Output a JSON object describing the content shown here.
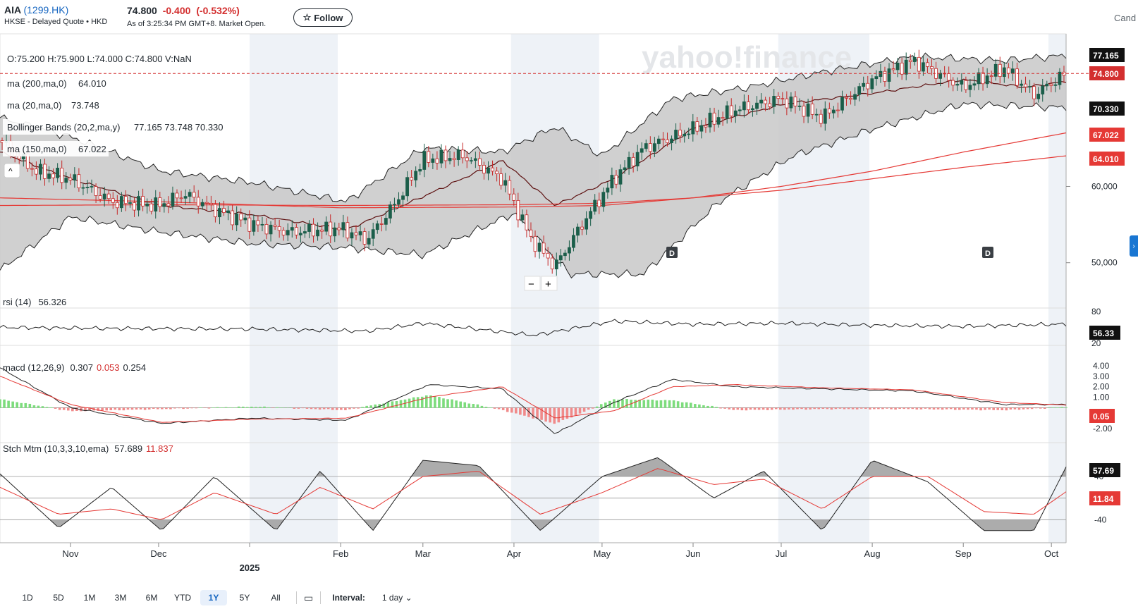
{
  "header": {
    "name": "AIA",
    "ticker": "(1299.HK)",
    "exchange": "HKSE - Delayed Quote • HKD",
    "price": "74.800",
    "change": "-0.400",
    "change_pct": "(-0.532%)",
    "as_of": "As of 3:25:34 PM GMT+8. Market Open.",
    "follow_label": "Follow",
    "follow_icon": "star-icon",
    "chart_type_label": "Cand"
  },
  "watermark": "yahoo!finance",
  "overlays": {
    "ohlc": "O:75.200  H:75.900  L:74.000  C:74.800  V:NaN",
    "ma200_label": "ma (200,ma,0)",
    "ma200_value": "64.010",
    "ma20_label": "ma (20,ma,0)",
    "ma20_value": "73.748",
    "bb_label": "Bollinger Bands (20,2,ma,y)",
    "bb_values": "77.165 73.748 70.330",
    "ma150_label": "ma (150,ma,0)",
    "ma150_value": "67.022",
    "rsi_label": "rsi (14)",
    "rsi_value": "56.326",
    "macd_label": "macd (12,26,9)",
    "macd_v1": "0.307",
    "macd_v2": "0.053",
    "macd_v3": "0.254",
    "stch_label": "Stch Mtm (10,3,3,10,ema)",
    "stch_v1": "57.689",
    "stch_v2": "11.837"
  },
  "price_badges": {
    "bb_upper": "77.165",
    "last": "74.800",
    "bb_lower": "70.330",
    "ma150": "67.022",
    "ma200": "64.010"
  },
  "sub_badges": {
    "rsi": "56.33",
    "macd": "0.05",
    "stch1": "57.69",
    "stch2": "11.84"
  },
  "zoom": {
    "minus": "−",
    "plus": "+"
  },
  "dividend_marker": "D",
  "colors": {
    "up": "#1b5e4a",
    "down": "#c62828",
    "ma": "#e53935",
    "bb_fill": "#c8c8c8",
    "shade": "#eef2f7",
    "hist_up": "#7ddc7d",
    "hist_down": "#f08a8a"
  },
  "range_buttons": [
    "1D",
    "5D",
    "1M",
    "3M",
    "6M",
    "YTD",
    "1Y",
    "5Y",
    "All"
  ],
  "range_selected": "1Y",
  "calendar_icon": "calendar-icon",
  "interval_label": "Interval:",
  "interval_value": "1 day",
  "chart_data": {
    "type": "line",
    "title": "",
    "x_tick_labels": [
      "Nov",
      "Dec",
      "2025",
      "Feb",
      "Mar",
      "Apr",
      "May",
      "Jun",
      "Jul",
      "Aug",
      "Sep",
      "Oct"
    ],
    "x_range": [
      "2024-10-08",
      "2025-10-06"
    ],
    "price_axis": {
      "ticks": [
        50,
        60
      ],
      "tick_labels": [
        "50,000",
        "60,000"
      ],
      "ylim": [
        46,
        80
      ]
    },
    "series": [
      {
        "name": "ma (20,ma,0)",
        "x": [
          "2024-10-08",
          "2024-11-01",
          "2024-12-02",
          "2025-01-02",
          "2025-02-03",
          "2025-03-03",
          "2025-03-28",
          "2025-04-15",
          "2025-05-05",
          "2025-06-02",
          "2025-07-02",
          "2025-08-01",
          "2025-09-01",
          "2025-09-22",
          "2025-10-06"
        ],
        "values": [
          64.5,
          61.0,
          57.5,
          56.3,
          54.3,
          59.0,
          63.4,
          57.5,
          61.0,
          67.8,
          70.8,
          72.2,
          74.0,
          73.0,
          73.75
        ]
      },
      {
        "name": "Bollinger Bands upper",
        "x": [
          "2024-10-08",
          "2024-11-01",
          "2024-12-02",
          "2025-01-02",
          "2025-02-03",
          "2025-03-01",
          "2025-03-28",
          "2025-04-15",
          "2025-05-01",
          "2025-05-25",
          "2025-06-20",
          "2025-07-15",
          "2025-08-15",
          "2025-09-15",
          "2025-10-06"
        ],
        "values": [
          69.0,
          66.5,
          62.0,
          60.5,
          58.0,
          65.0,
          64.5,
          67.8,
          64.0,
          71.5,
          73.0,
          75.0,
          77.0,
          76.5,
          77.17
        ]
      },
      {
        "name": "Bollinger Bands lower",
        "x": [
          "2024-10-08",
          "2024-11-01",
          "2024-12-02",
          "2025-01-02",
          "2025-02-03",
          "2025-03-01",
          "2025-04-01",
          "2025-04-20",
          "2025-05-15",
          "2025-06-10",
          "2025-07-05",
          "2025-08-01",
          "2025-09-01",
          "2025-10-06"
        ],
        "values": [
          49.0,
          56.0,
          54.0,
          52.5,
          52.0,
          51.0,
          56.5,
          48.5,
          48.5,
          58.0,
          64.0,
          67.5,
          70.8,
          70.33
        ]
      },
      {
        "name": "ma (150,ma,0)",
        "x": [
          "2024-10-08",
          "2024-12-01",
          "2025-02-01",
          "2025-04-01",
          "2025-05-01",
          "2025-06-01",
          "2025-07-01",
          "2025-08-01",
          "2025-09-01",
          "2025-10-06"
        ],
        "values": [
          58.5,
          58.0,
          57.2,
          57.3,
          57.5,
          58.5,
          60.0,
          62.0,
          64.5,
          67.02
        ]
      },
      {
        "name": "ma (200,ma,0)",
        "x": [
          "2024-10-08",
          "2024-12-01",
          "2025-02-01",
          "2025-04-01",
          "2025-05-01",
          "2025-06-01",
          "2025-07-01",
          "2025-08-01",
          "2025-09-01",
          "2025-10-06"
        ],
        "values": [
          57.5,
          57.6,
          57.5,
          57.6,
          57.8,
          58.5,
          59.5,
          61.0,
          62.5,
          64.01
        ]
      },
      {
        "name": "Close",
        "x": [
          "2024-10-08",
          "2024-10-20",
          "2024-11-01",
          "2024-11-15",
          "2024-12-01",
          "2024-12-10",
          "2024-12-20",
          "2025-01-02",
          "2025-01-15",
          "2025-02-01",
          "2025-02-10",
          "2025-02-20",
          "2025-03-01",
          "2025-03-15",
          "2025-03-28",
          "2025-04-07",
          "2025-04-15",
          "2025-04-25",
          "2025-05-05",
          "2025-05-15",
          "2025-06-01",
          "2025-06-15",
          "2025-07-01",
          "2025-07-15",
          "2025-08-01",
          "2025-08-15",
          "2025-09-01",
          "2025-09-15",
          "2025-09-25",
          "2025-10-06"
        ],
        "values": [
          66.0,
          62.0,
          61.0,
          58.0,
          57.5,
          59.0,
          57.0,
          55.0,
          54.0,
          54.5,
          53.0,
          58.0,
          63.5,
          64.0,
          61.0,
          53.0,
          49.5,
          55.5,
          61.0,
          65.0,
          67.5,
          70.0,
          71.5,
          69.0,
          74.0,
          76.5,
          73.0,
          75.5,
          72.0,
          74.8
        ]
      }
    ],
    "rsi": {
      "name": "rsi (14)",
      "axis_ticks": [
        80,
        20
      ],
      "last": 56.33,
      "x": [
        "2024-10-08",
        "2024-11-15",
        "2025-01-02",
        "2025-02-10",
        "2025-03-01",
        "2025-04-08",
        "2025-05-05",
        "2025-06-01",
        "2025-07-01",
        "2025-08-01",
        "2025-09-01",
        "2025-10-06"
      ],
      "values": [
        50,
        48,
        47,
        43,
        58,
        35,
        62,
        56,
        58,
        54,
        52,
        56.33
      ]
    },
    "macd": {
      "axis_ticks": [
        4,
        3,
        2,
        1,
        -1,
        -2
      ],
      "last": 0.05,
      "x": [
        "2024-10-08",
        "2024-11-01",
        "2024-12-02",
        "2025-01-02",
        "2025-02-03",
        "2025-03-03",
        "2025-03-28",
        "2025-04-15",
        "2025-05-05",
        "2025-05-25",
        "2025-06-15",
        "2025-07-15",
        "2025-08-15",
        "2025-09-15",
        "2025-10-06"
      ],
      "macd": [
        3.8,
        0.0,
        -1.5,
        -1.0,
        -1.2,
        2.2,
        1.8,
        -2.5,
        0.5,
        2.7,
        2.0,
        1.8,
        1.6,
        0.3,
        0.31
      ],
      "signal": [
        3.0,
        0.3,
        -1.4,
        -1.1,
        -1.0,
        1.0,
        2.0,
        -1.0,
        -0.3,
        2.0,
        2.2,
        1.9,
        1.7,
        0.5,
        0.25
      ]
    },
    "stch_mtm": {
      "axis_ticks": [
        40,
        -40
      ],
      "last": [
        57.69,
        11.84
      ],
      "x": [
        "2024-10-08",
        "2024-10-28",
        "2024-11-15",
        "2024-12-02",
        "2024-12-20",
        "2025-01-10",
        "2025-01-25",
        "2025-02-12",
        "2025-03-01",
        "2025-03-20",
        "2025-04-10",
        "2025-05-01",
        "2025-05-20",
        "2025-06-08",
        "2025-06-25",
        "2025-07-15",
        "2025-08-01",
        "2025-08-20",
        "2025-09-08",
        "2025-09-25",
        "2025-10-06"
      ],
      "line": [
        45,
        -55,
        20,
        -60,
        40,
        -60,
        50,
        -60,
        70,
        60,
        -60,
        40,
        75,
        0,
        50,
        -60,
        70,
        30,
        -60,
        -60,
        57.69
      ],
      "signal": [
        20,
        -30,
        -20,
        -40,
        10,
        -30,
        20,
        -20,
        40,
        50,
        -30,
        10,
        55,
        25,
        35,
        -20,
        40,
        40,
        -25,
        -30,
        11.84
      ]
    }
  }
}
